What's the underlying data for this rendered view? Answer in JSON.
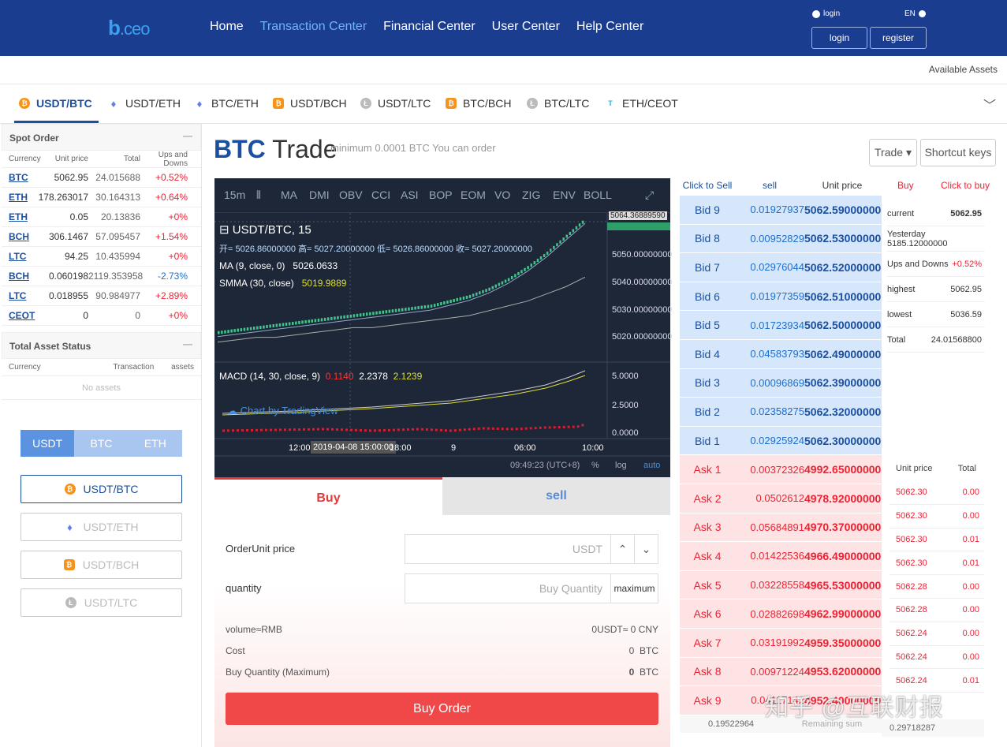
{
  "header": {
    "logo_b": "b",
    "logo_ceo": ".ceo",
    "nav": [
      "Home",
      "Transaction Center",
      "Financial Center",
      "User Center",
      "Help Center"
    ],
    "login_status": "login",
    "lang": "EN",
    "login_btn": "login",
    "register_btn": "register"
  },
  "assets_link": "Available Assets",
  "pairs": [
    {
      "label": "USDT/BTC",
      "icon": "btc"
    },
    {
      "label": "USDT/ETH",
      "icon": "eth"
    },
    {
      "label": "BTC/ETH",
      "icon": "eth"
    },
    {
      "label": "USDT/BCH",
      "icon": "bch"
    },
    {
      "label": "USDT/LTC",
      "icon": "ltc"
    },
    {
      "label": "BTC/BCH",
      "icon": "bch"
    },
    {
      "label": "BTC/LTC",
      "icon": "ltc"
    },
    {
      "label": "ETH/CEOT",
      "icon": "ceot"
    }
  ],
  "spot": {
    "title": "Spot Order",
    "min": "—",
    "headers": [
      "Currency",
      "Unit price",
      "Total",
      "Ups and Downs"
    ],
    "rows": [
      {
        "c": "BTC",
        "p": "5062.95",
        "t": "24.015688",
        "d": "+0.52%",
        "dir": "up"
      },
      {
        "c": "ETH",
        "p": "178.263017",
        "t": "30.164313",
        "d": "+0.64%",
        "dir": "up"
      },
      {
        "c": "ETH",
        "p": "0.05",
        "t": "20.13836",
        "d": "+0%",
        "dir": "up"
      },
      {
        "c": "BCH",
        "p": "306.1467",
        "t": "57.095457",
        "d": "+1.54%",
        "dir": "up"
      },
      {
        "c": "LTC",
        "p": "94.25",
        "t": "10.435994",
        "d": "+0%",
        "dir": "up"
      },
      {
        "c": "BCH",
        "p": "0.060198",
        "t": "2119.353958",
        "d": "-2.73%",
        "dir": "dn"
      },
      {
        "c": "LTC",
        "p": "0.018955",
        "t": "90.984977",
        "d": "+2.89%",
        "dir": "up"
      },
      {
        "c": "CEOT",
        "p": "0",
        "t": "0",
        "d": "+0%",
        "dir": "up"
      }
    ]
  },
  "asset_status": {
    "title": "Total Asset Status",
    "min": "—",
    "headers": [
      "Currency",
      "Transaction",
      "assets"
    ],
    "empty": "No assets"
  },
  "market_tabs": [
    "USDT",
    "BTC",
    "ETH"
  ],
  "market_pairs": [
    "USDT/BTC",
    "USDT/ETH",
    "USDT/BCH",
    "USDT/LTC"
  ],
  "trade": {
    "coin": "BTC",
    "word": "Trade",
    "min_text": "minimum 0.0001 BTC You can order",
    "trade_btn": "Trade ▾",
    "shortcut_btn": "Shortcut keys"
  },
  "chart": {
    "toolbar": [
      "15m",
      "MA",
      "DMI",
      "OBV",
      "CCI",
      "ASI",
      "BOP",
      "EOM",
      "VO",
      "ZIG",
      "ENV",
      "BOLL"
    ],
    "symbol": "USDT/BTC, 15",
    "ohlc": "开= 5026.86000000 高= 5027.20000000 低= 5026.86000000 收= 5027.20000000",
    "ma": "MA (9, close, 0)",
    "ma_val": "5026.0633",
    "smma": "SMMA (30, close)",
    "smma_val": "5019.9889",
    "macd": "MACD (14, 30, close, 9)",
    "macd_v1": "0.1140",
    "macd_v2": "2.2378",
    "macd_v3": "2.1239",
    "watermark": "Chart by TradingView",
    "price_ticks": [
      "5064.36889590",
      "5050.00000000",
      "5040.00000000",
      "5030.00000000",
      "5020.00000000"
    ],
    "macd_ticks": [
      "5.0000",
      "2.5000",
      "0.0000"
    ],
    "time_ticks": [
      "12:00",
      "2019-04-08 15:00:00",
      "18:00",
      "9",
      "06:00",
      "10:00"
    ],
    "clock": "09:49:23 (UTC+8)",
    "pct": "%",
    "log": "log",
    "auto": "auto",
    "chart_data": {
      "type": "line",
      "series": [
        {
          "values": [
            5016,
            5017,
            5018,
            5019,
            5020,
            5021,
            5022,
            5023,
            5024,
            5025,
            5026,
            5027,
            5029,
            5031,
            5034,
            5038,
            5043,
            5049,
            5056,
            5063
          ]
        },
        {
          "values": [
            5015,
            5016,
            5017,
            5017,
            5018,
            5019,
            5020,
            5021,
            5021,
            5022,
            5023,
            5024,
            5025,
            5026,
            5028,
            5030,
            5032,
            5035,
            5038,
            5042
          ]
        }
      ]
    }
  },
  "order_tabs": {
    "buy": "Buy",
    "sell": "sell"
  },
  "form": {
    "price_label": "OrderUnit price",
    "price_unit": "USDT",
    "qty_label": "quantity",
    "qty_ph": "Buy Quantity",
    "max": "maximum",
    "vol_label": "volume≈RMB",
    "vol_val": "0USDT≈ 0 CNY",
    "cost_label": "Cost",
    "cost_val": "0",
    "cost_unit": "BTC",
    "bq_label": "Buy Quantity (Maximum)",
    "bq_val": "0",
    "bq_unit": "BTC",
    "submit": "Buy Order"
  },
  "book": {
    "h_sell": "Click to Sell",
    "h_sellc": "sell",
    "h_price": "Unit price",
    "h_buy": "Buy",
    "h_buyc": "Click to buy",
    "bids": [
      {
        "n": "Bid 9",
        "a": "0.01927937",
        "p": "5062.59000000"
      },
      {
        "n": "Bid 8",
        "a": "0.00952829",
        "p": "5062.53000000"
      },
      {
        "n": "Bid 7",
        "a": "0.02976044",
        "p": "5062.52000000"
      },
      {
        "n": "Bid 6",
        "a": "0.01977359",
        "p": "5062.51000000"
      },
      {
        "n": "Bid 5",
        "a": "0.01723934",
        "p": "5062.50000000"
      },
      {
        "n": "Bid 4",
        "a": "0.04583793",
        "p": "5062.49000000"
      },
      {
        "n": "Bid 3",
        "a": "0.00096869",
        "p": "5062.39000000"
      },
      {
        "n": "Bid 2",
        "a": "0.02358275",
        "p": "5062.32000000"
      },
      {
        "n": "Bid 1",
        "a": "0.02925924",
        "p": "5062.30000000"
      }
    ],
    "asks": [
      {
        "n": "Ask 1",
        "a": "0.00372326",
        "p": "4992.65000000"
      },
      {
        "n": "Ask 2",
        "a": "0.0502612",
        "p": "4978.92000000"
      },
      {
        "n": "Ask 3",
        "a": "0.05684891",
        "p": "4970.37000000"
      },
      {
        "n": "Ask 4",
        "a": "0.01422536",
        "p": "4966.49000000"
      },
      {
        "n": "Ask 5",
        "a": "0.03228558",
        "p": "4965.53000000"
      },
      {
        "n": "Ask 6",
        "a": "0.02882698",
        "p": "4962.99000000"
      },
      {
        "n": "Ask 7",
        "a": "0.03191992",
        "p": "4959.35000000"
      },
      {
        "n": "Ask 8",
        "a": "0.00971224",
        "p": "4953.62000000"
      },
      {
        "n": "Ask 9",
        "a": "0.04117142",
        "p": "4952.40000000"
      }
    ],
    "foot_left": "0.19522964",
    "foot_mid": "Remaining sum",
    "foot_right": "0.29718287"
  },
  "info": [
    {
      "k": "current",
      "v": "5062.95"
    },
    {
      "k": "Yesterday 5185.12000000",
      "v": ""
    },
    {
      "k": "Ups and Downs",
      "v": "+0.52%"
    },
    {
      "k": "highest",
      "v": "5062.95"
    },
    {
      "k": "lowest",
      "v": "5036.59"
    },
    {
      "k": "Total",
      "v": "24.01568800"
    }
  ],
  "trades": {
    "h_price": "Unit price",
    "h_total": "Total",
    "rows": [
      {
        "p": "5062.30",
        "t": "0.00"
      },
      {
        "p": "5062.30",
        "t": "0.00"
      },
      {
        "p": "5062.30",
        "t": "0.01"
      },
      {
        "p": "5062.30",
        "t": "0.01"
      },
      {
        "p": "5062.28",
        "t": "0.00"
      },
      {
        "p": "5062.28",
        "t": "0.00"
      },
      {
        "p": "5062.24",
        "t": "0.00"
      },
      {
        "p": "5062.24",
        "t": "0.00"
      },
      {
        "p": "5062.24",
        "t": "0.01"
      }
    ]
  },
  "watermark": "知乎 @互联财报"
}
